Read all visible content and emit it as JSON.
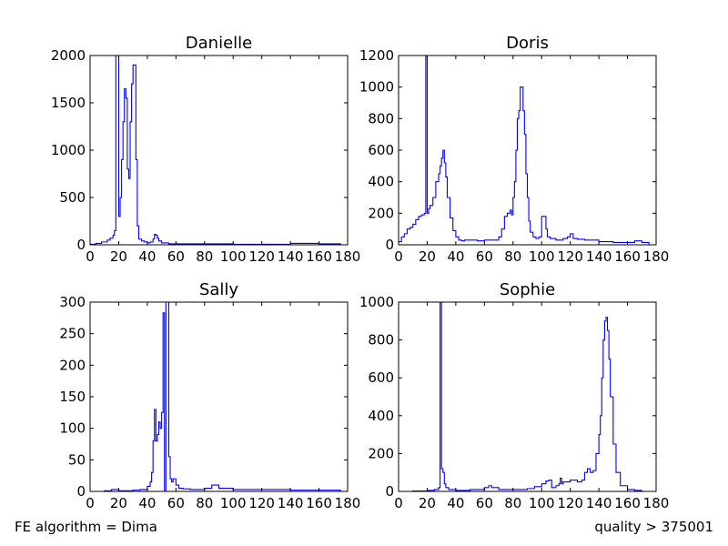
{
  "footer": {
    "left": "FE algorithm = Dima",
    "right": "quality > 375001"
  },
  "colors": {
    "line": "#0000ff",
    "axes": "#000000",
    "background": "#ffffff"
  },
  "chart_data": [
    {
      "type": "line",
      "title": "Danielle",
      "xlabel": "",
      "ylabel": "",
      "xlim": [
        0,
        180
      ],
      "ylim": [
        0,
        2000
      ],
      "xticks": [
        0,
        20,
        40,
        60,
        80,
        100,
        120,
        140,
        160,
        180
      ],
      "yticks": [
        0,
        500,
        1000,
        1500,
        2000
      ],
      "grid": false,
      "series": [
        {
          "x": [
            0,
            4,
            8,
            12,
            14,
            16,
            17,
            18,
            19,
            20,
            21,
            22,
            23,
            24,
            25,
            26,
            27,
            28,
            29,
            30,
            31,
            32,
            33,
            34,
            36,
            38,
            40,
            42,
            44,
            45,
            46,
            47,
            48,
            50,
            55,
            60,
            80,
            100,
            120,
            140,
            160,
            175
          ],
          "y": [
            5,
            15,
            30,
            50,
            70,
            100,
            150,
            2000,
            2000,
            300,
            500,
            900,
            1300,
            1650,
            1550,
            800,
            700,
            1300,
            1700,
            1900,
            1900,
            900,
            200,
            60,
            40,
            30,
            20,
            30,
            60,
            110,
            100,
            70,
            40,
            20,
            10,
            10,
            10,
            5,
            5,
            15,
            10,
            0
          ]
        }
      ]
    },
    {
      "type": "line",
      "title": "Doris",
      "xlabel": "",
      "ylabel": "",
      "xlim": [
        0,
        180
      ],
      "ylim": [
        0,
        1200
      ],
      "xticks": [
        0,
        20,
        40,
        60,
        80,
        100,
        120,
        140,
        160,
        180
      ],
      "yticks": [
        0,
        200,
        400,
        600,
        800,
        1000,
        1200
      ],
      "grid": false,
      "series": [
        {
          "x": [
            0,
            2,
            4,
            6,
            8,
            10,
            12,
            14,
            16,
            18,
            19,
            20,
            21,
            22,
            24,
            26,
            28,
            29,
            30,
            31,
            32,
            33,
            34,
            36,
            38,
            40,
            42,
            44,
            46,
            50,
            55,
            60,
            65,
            70,
            72,
            74,
            76,
            78,
            79,
            80,
            81,
            82,
            83,
            84,
            85,
            86,
            87,
            88,
            89,
            90,
            91,
            92,
            94,
            96,
            98,
            100,
            101,
            102,
            103,
            104,
            106,
            110,
            115,
            118,
            120,
            122,
            125,
            130,
            140,
            150,
            160,
            165,
            170,
            175
          ],
          "y": [
            20,
            50,
            70,
            100,
            110,
            130,
            160,
            180,
            190,
            200,
            1200,
            200,
            230,
            250,
            300,
            400,
            450,
            500,
            550,
            600,
            520,
            430,
            300,
            170,
            90,
            50,
            30,
            25,
            30,
            30,
            25,
            30,
            30,
            50,
            100,
            180,
            200,
            220,
            190,
            300,
            400,
            600,
            800,
            850,
            1000,
            1000,
            850,
            700,
            450,
            300,
            150,
            80,
            50,
            40,
            50,
            180,
            180,
            180,
            100,
            50,
            40,
            30,
            40,
            50,
            70,
            40,
            35,
            30,
            20,
            15,
            15,
            25,
            15,
            0
          ]
        }
      ]
    },
    {
      "type": "line",
      "title": "Sally",
      "xlabel": "",
      "ylabel": "",
      "xlim": [
        0,
        180
      ],
      "ylim": [
        0,
        300
      ],
      "xticks": [
        0,
        20,
        40,
        60,
        80,
        100,
        120,
        140,
        160,
        180
      ],
      "yticks": [
        0,
        50,
        100,
        150,
        200,
        250,
        300
      ],
      "grid": false,
      "series": [
        {
          "x": [
            0,
            10,
            15,
            20,
            30,
            35,
            40,
            42,
            43,
            44,
            45,
            46,
            47,
            48,
            49,
            50,
            51,
            52,
            53,
            54,
            55,
            56,
            57,
            58,
            60,
            62,
            65,
            70,
            80,
            85,
            90,
            100,
            120,
            140,
            160,
            175
          ],
          "y": [
            0,
            1,
            3,
            1,
            2,
            3,
            8,
            15,
            30,
            80,
            130,
            80,
            90,
            110,
            100,
            125,
            283,
            0,
            300,
            300,
            55,
            20,
            15,
            20,
            10,
            5,
            4,
            3,
            5,
            10,
            5,
            3,
            3,
            2,
            2,
            0
          ]
        }
      ]
    },
    {
      "type": "line",
      "title": "Sophie",
      "xlabel": "",
      "ylabel": "",
      "xlim": [
        0,
        180
      ],
      "ylim": [
        0,
        1000
      ],
      "xticks": [
        0,
        20,
        40,
        60,
        80,
        100,
        120,
        140,
        160,
        180
      ],
      "yticks": [
        0,
        200,
        400,
        600,
        800,
        1000
      ],
      "grid": false,
      "series": [
        {
          "x": [
            0,
            10,
            20,
            25,
            28,
            29,
            30,
            31,
            32,
            33,
            35,
            40,
            50,
            60,
            63,
            65,
            70,
            80,
            90,
            95,
            100,
            103,
            105,
            107,
            110,
            112,
            113,
            114,
            115,
            120,
            125,
            128,
            130,
            132,
            134,
            136,
            138,
            140,
            141,
            142,
            143,
            144,
            145,
            146,
            147,
            148,
            150,
            152,
            155,
            160,
            165,
            170
          ],
          "y": [
            0,
            2,
            5,
            10,
            20,
            1000,
            120,
            100,
            40,
            20,
            10,
            5,
            10,
            20,
            30,
            20,
            10,
            10,
            15,
            25,
            40,
            55,
            60,
            20,
            30,
            40,
            70,
            40,
            50,
            60,
            50,
            60,
            100,
            120,
            100,
            110,
            200,
            300,
            400,
            600,
            800,
            900,
            920,
            850,
            700,
            500,
            250,
            100,
            30,
            10,
            5,
            0
          ]
        }
      ]
    }
  ]
}
